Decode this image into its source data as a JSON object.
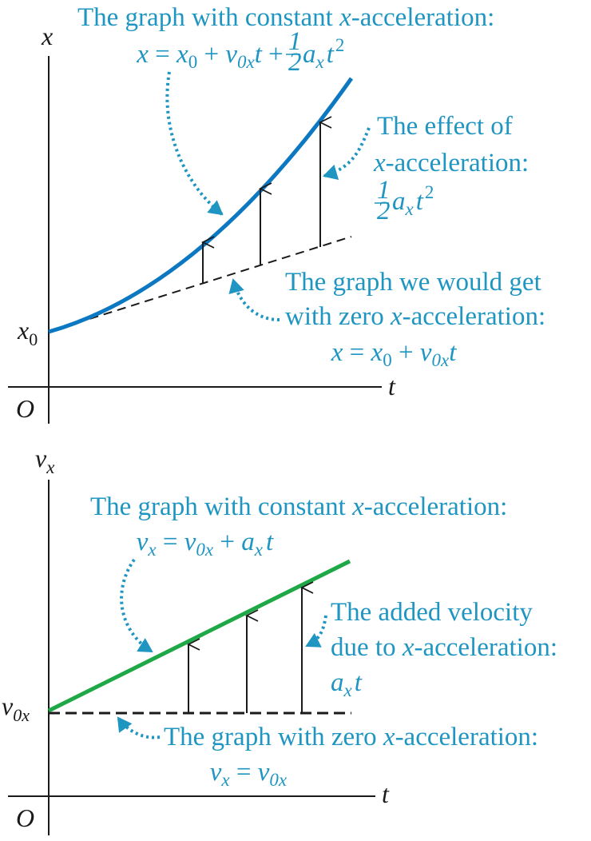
{
  "colors": {
    "annotation": "#1f95c2",
    "curve_blue": "#0c78c1",
    "line_green": "#1ea846",
    "axis": "#1a1a1a"
  },
  "top_graph": {
    "y_axis_label": "x",
    "x_axis_label": "t",
    "origin_label": "O",
    "intercept_label": "x",
    "intercept_sub": "0",
    "curve_caption": "The graph with constant ",
    "curve_caption_var": "x",
    "curve_caption_tail": "-acceleration:",
    "curve_equation": {
      "lhs": "x",
      "eq": " = ",
      "x0": "x",
      "x0_sub": "0",
      "plus1": " + ",
      "v": "v",
      "v_sub": "0x",
      "t": "t",
      "plus2": " + ",
      "half_num": "1",
      "half_den": "2",
      "a": "a",
      "a_sub": "x",
      "t2": "t",
      "t2_sup": "2"
    },
    "effect_caption_line1": "The effect of",
    "effect_caption_var": "x",
    "effect_caption_line2": "-acceleration:",
    "effect_equation": {
      "half_num": "1",
      "half_den": "2",
      "a": "a",
      "a_sub": "x",
      "t": "t",
      "t_sup": "2"
    },
    "zero_caption_line1": "The graph we would get",
    "zero_caption_line2_pre": "with zero ",
    "zero_caption_var": "x",
    "zero_caption_line2_post": "-acceleration:",
    "zero_equation": {
      "lhs": "x",
      "eq": " = ",
      "x0": "x",
      "x0_sub": "0",
      "plus": " + ",
      "v": "v",
      "v_sub": "0x",
      "t": "t"
    }
  },
  "bottom_graph": {
    "y_axis_label": "v",
    "y_axis_sub": "x",
    "x_axis_label": "t",
    "origin_label": "O",
    "intercept_label": "v",
    "intercept_sub": "0x",
    "line_caption": "The graph with constant ",
    "line_caption_var": "x",
    "line_caption_tail": "-acceleration:",
    "line_equation": {
      "lhs": "v",
      "lhs_sub": "x",
      "eq": " = ",
      "v": "v",
      "v_sub": "0x",
      "plus": " + ",
      "a": "a",
      "a_sub": "x",
      "t": "t"
    },
    "added_caption_line1": "The added velocity",
    "added_caption_line2_pre": "due to ",
    "added_caption_var": "x",
    "added_caption_line2_post": "-acceleration:",
    "added_equation": {
      "a": "a",
      "a_sub": "x",
      "t": "t"
    },
    "zero_caption_pre": "The graph with zero ",
    "zero_caption_var": "x",
    "zero_caption_post": "-acceleration:",
    "zero_equation": {
      "lhs": "v",
      "lhs_sub": "x",
      "eq": " = ",
      "v": "v",
      "v_sub": "0x"
    }
  }
}
